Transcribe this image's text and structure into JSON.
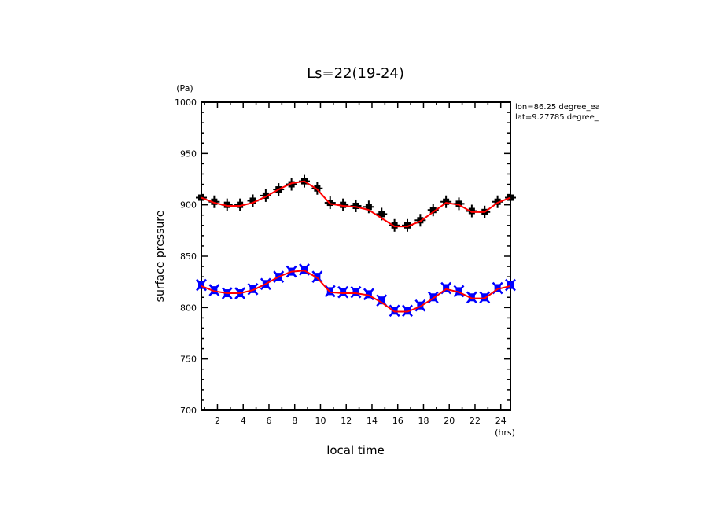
{
  "chart_data": {
    "type": "line",
    "title": "Ls=22(19-24)",
    "xlabel": "local time",
    "xunit": "(hrs)",
    "ylabel": "surface pressure",
    "yunit": "(Pa)",
    "annotations": [
      "lon=86.25 degree_ea",
      "lat=9.27785 degree_"
    ],
    "xlim": [
      0.75,
      24.75
    ],
    "ylim": [
      700,
      1000
    ],
    "xticks": [
      2,
      4,
      6,
      8,
      10,
      12,
      14,
      16,
      18,
      20,
      22,
      24
    ],
    "xtick_labels": [
      "2",
      "4",
      "6",
      "8",
      "10",
      "12",
      "14",
      "16",
      "18",
      "20",
      "22",
      "24"
    ],
    "yticks": [
      700,
      750,
      800,
      850,
      900,
      950,
      1000
    ],
    "ytick_labels": [
      "700",
      "750",
      "800",
      "850",
      "900",
      "950",
      "1000"
    ],
    "grid": false,
    "x": [
      0.75,
      1.75,
      2.75,
      3.75,
      4.75,
      5.75,
      6.75,
      7.75,
      8.75,
      9.75,
      10.75,
      11.75,
      12.75,
      13.75,
      14.75,
      15.75,
      16.75,
      17.75,
      18.75,
      19.75,
      20.75,
      21.75,
      22.75,
      23.75,
      24.75
    ],
    "series": [
      {
        "name": "upper-observed",
        "marker": "plus",
        "color": "#000000",
        "values": [
          907,
          903,
          900,
          900,
          904,
          909,
          915,
          920,
          923,
          916,
          902,
          900,
          899,
          898,
          891,
          880,
          880,
          885,
          895,
          903,
          901,
          894,
          893,
          903,
          907
        ]
      },
      {
        "name": "upper-fit",
        "style": "line",
        "color": "#ff0000",
        "values": [
          907,
          902,
          899,
          899,
          902,
          908,
          915,
          921,
          923,
          915,
          901,
          899,
          898,
          895,
          887,
          879,
          879,
          884,
          893,
          902,
          900,
          893,
          893,
          902,
          907
        ]
      },
      {
        "name": "lower-observed",
        "marker": "x",
        "color": "#0000ff",
        "values": [
          822,
          817,
          814,
          814,
          818,
          823,
          830,
          835,
          837,
          830,
          816,
          815,
          815,
          813,
          807,
          797,
          797,
          802,
          810,
          819,
          816,
          810,
          810,
          819,
          822
        ]
      },
      {
        "name": "lower-fit",
        "style": "line",
        "color": "#ff0000",
        "values": [
          821,
          816,
          814,
          814,
          817,
          823,
          830,
          835,
          836,
          829,
          815,
          814,
          814,
          812,
          805,
          796,
          796,
          801,
          809,
          818,
          815,
          809,
          809,
          818,
          821
        ]
      }
    ]
  }
}
